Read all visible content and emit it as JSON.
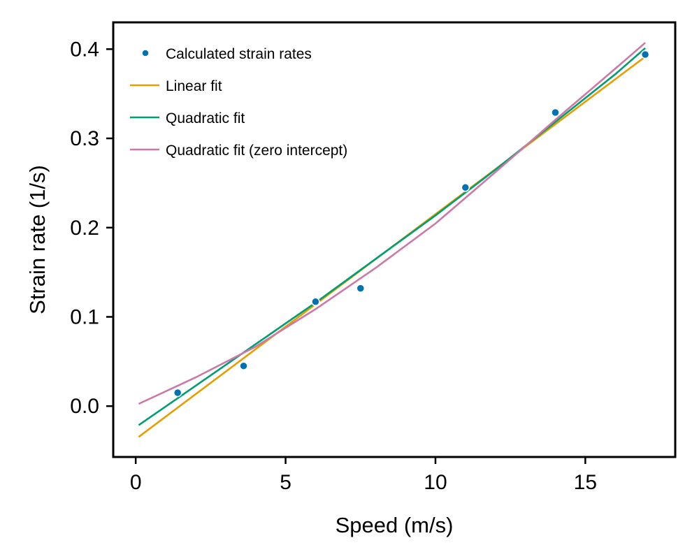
{
  "chart_data": {
    "type": "scatter",
    "xlabel": "Speed (m/s)",
    "ylabel": "Strain rate (1/s)",
    "xlim": [
      -0.75,
      18
    ],
    "ylim": [
      -0.057,
      0.43
    ],
    "x_ticks": [
      0,
      5,
      10,
      15
    ],
    "y_ticks": [
      0.0,
      0.1,
      0.2,
      0.3,
      0.4
    ],
    "x_tick_labels": [
      "0",
      "5",
      "10",
      "15"
    ],
    "y_tick_labels": [
      "0.0",
      "0.1",
      "0.2",
      "0.3",
      "0.4"
    ],
    "grid": false,
    "legend_position": "top-left",
    "scatter": {
      "name": "Calculated strain rates",
      "color": "#0072b2",
      "x": [
        1.4,
        3.6,
        6.0,
        7.5,
        11.0,
        14.0,
        17.0
      ],
      "y": [
        0.015,
        0.045,
        0.117,
        0.132,
        0.245,
        0.329,
        0.394
      ]
    },
    "series": [
      {
        "name": "Linear fit",
        "color": "#e69f00",
        "x": [
          0.1,
          17.0
        ],
        "y": [
          -0.0345,
          0.3915
        ]
      },
      {
        "name": "Quadratic fit",
        "color": "#009e73",
        "x": [
          0.1,
          2.0,
          4.0,
          6.0,
          8.0,
          10.0,
          12.0,
          14.0,
          16.0,
          17.0
        ],
        "y": [
          -0.0213,
          0.0228,
          0.0694,
          0.1159,
          0.1648,
          0.2137,
          0.2649,
          0.3184,
          0.3719,
          0.4011
        ]
      },
      {
        "name": "Quadratic fit (zero intercept)",
        "color": "#cc79a7",
        "x": [
          0.1,
          2.0,
          4.0,
          6.0,
          8.0,
          10.0,
          12.0,
          14.0,
          16.0,
          17.0
        ],
        "y": [
          0.0025,
          0.0322,
          0.0666,
          0.1087,
          0.1547,
          0.2046,
          0.2621,
          0.3208,
          0.3781,
          0.4071
        ]
      }
    ]
  }
}
